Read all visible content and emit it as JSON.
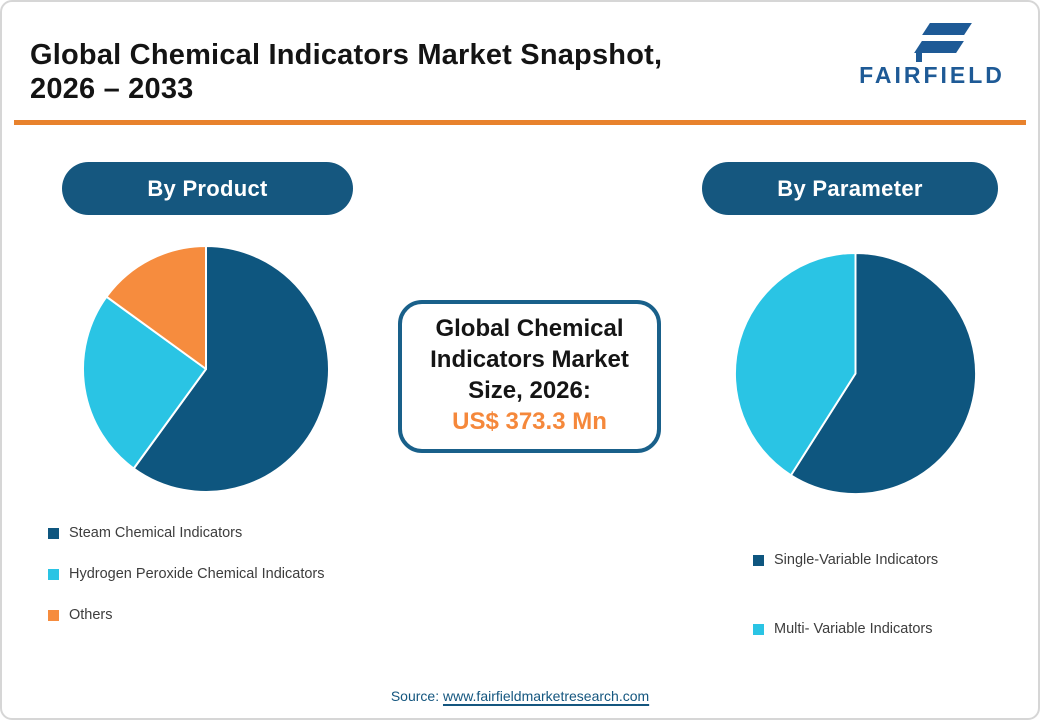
{
  "header": {
    "title_line1": "Global Chemical Indicators Market Snapshot,",
    "title_line2": "2026 – 2033",
    "logo_text": "FAIRFIELD"
  },
  "center_box": {
    "line1": "Global Chemical",
    "line2": "Indicators Market",
    "line3": "Size, 2026:",
    "value": "US$ 373.3 Mn"
  },
  "source": {
    "label": "Source: ",
    "url_text": "www.fairfieldmarketresearch.com"
  },
  "colors": {
    "dark_blue": "#0E567F",
    "cyan": "#2AC4E4",
    "orange": "#F68C3E",
    "pill_blue": "#15577F",
    "divider_orange": "#E8822D",
    "logo_blue": "#1E5A96",
    "value_orange": "#F5883B",
    "source_blue": "#14567F",
    "box_border_blue": "#19608A",
    "title_black": "#141414",
    "legend_gray": "#3D3D3D"
  },
  "chart_data": [
    {
      "type": "pie",
      "title": "By Product",
      "labels": [
        "Steam Chemical Indicators",
        "Hydrogen Peroxide Chemical Indicators",
        "Others"
      ],
      "values": [
        60,
        25,
        15
      ],
      "colors": [
        "#0E567F",
        "#2AC4E4",
        "#F68C3E"
      ],
      "start_angle_deg": 0,
      "direction": "clockwise",
      "legend_position": "below-left",
      "slice_separator": "#ffffff"
    },
    {
      "type": "pie",
      "title": "By Parameter",
      "labels": [
        "Single-Variable Indicators",
        "Multi- Variable Indicators"
      ],
      "values": [
        59,
        41
      ],
      "colors": [
        "#0E567F",
        "#2AC4E4"
      ],
      "start_angle_deg": 0,
      "direction": "clockwise",
      "legend_position": "below-right",
      "slice_separator": "#ffffff"
    }
  ]
}
